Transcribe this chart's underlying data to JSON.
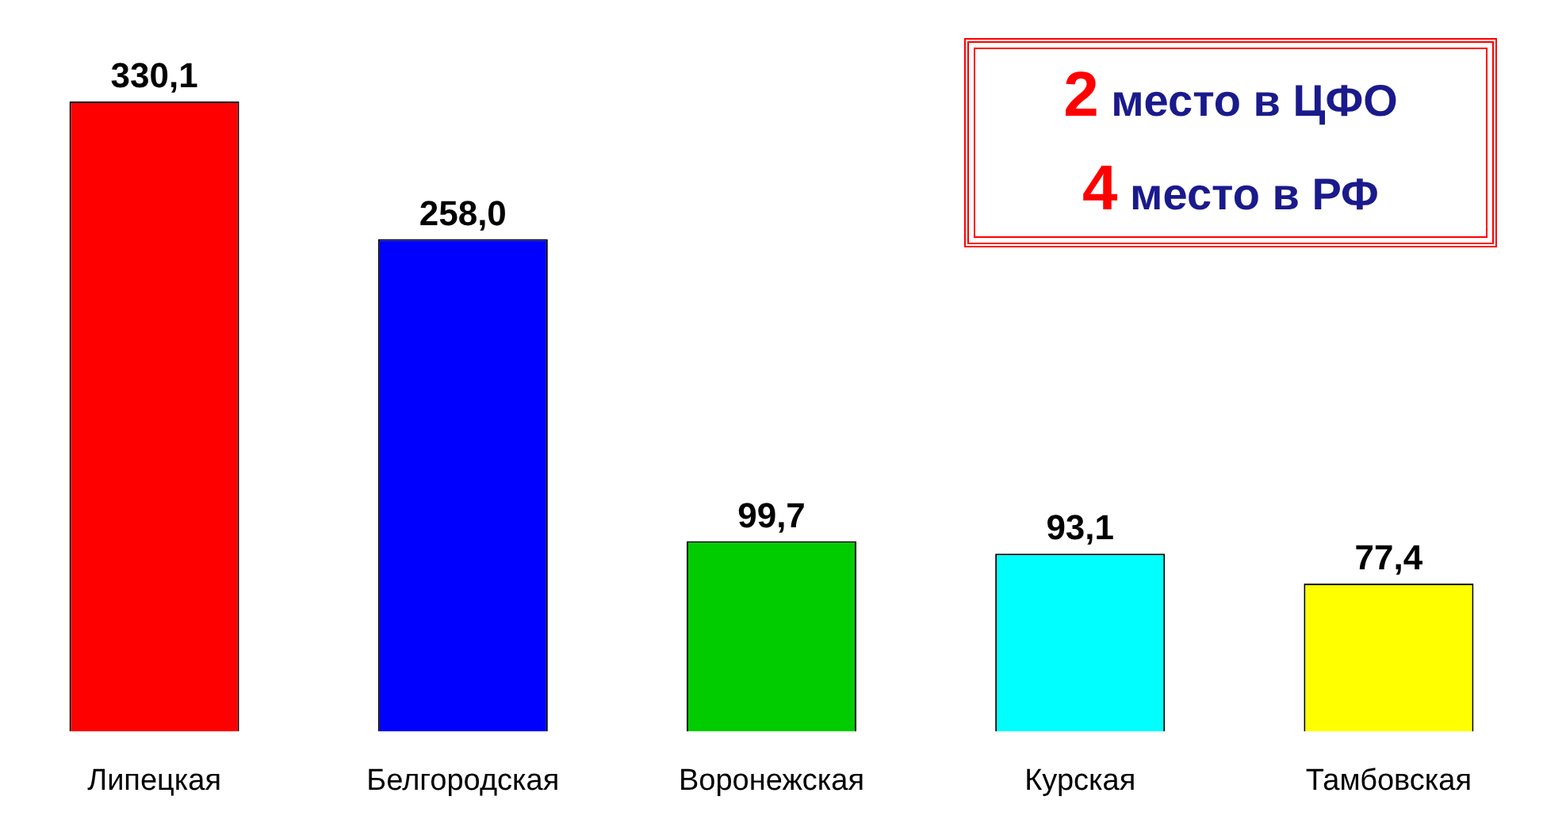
{
  "chart_data": {
    "type": "bar",
    "categories": [
      "Липецкая",
      "Белгородская",
      "Воронежская",
      "Курская",
      "Тамбовская"
    ],
    "values": [
      330.1,
      258.0,
      99.7,
      93.1,
      77.4
    ],
    "colors": [
      "#ff0000",
      "#0000ff",
      "#00cc00",
      "#00ffff",
      "#ffff00"
    ],
    "value_labels": [
      "330,1",
      "258,0",
      "99,7",
      "93,1",
      "77,4"
    ],
    "annotations": [
      "2 место в ЦФО",
      "4 место в РФ"
    ],
    "grid": false,
    "legend": false
  }
}
